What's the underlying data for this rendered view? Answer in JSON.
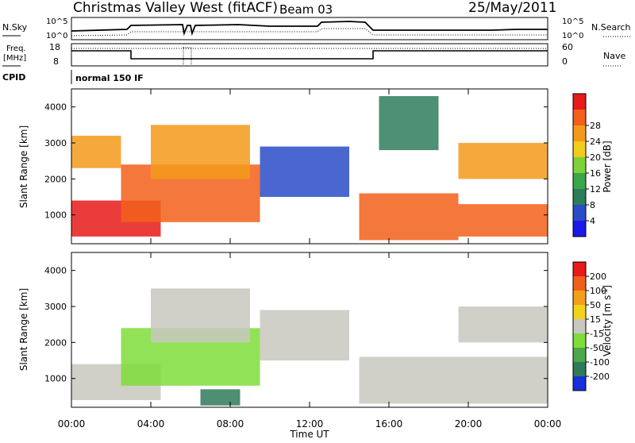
{
  "header": {
    "station": "Christmas Valley West (fitACF)",
    "beam": "Beam 03",
    "date": "25/May/2011"
  },
  "status_panels": {
    "nsky_label": "N.Sky",
    "nsearch_label": "N.Search",
    "freq_label_line1": "Freq.",
    "freq_label_line2": "[MHz]",
    "nave_label": "Nave",
    "cpid_label": "CPID",
    "cpid_value": "normal 150 IF",
    "noise_ticks": [
      "10^5",
      "10^0"
    ],
    "freq_ticks": [
      "18",
      "8"
    ],
    "nave_ticks": [
      "60",
      "0"
    ]
  },
  "axes": {
    "xlabel": "Time UT",
    "x_ticks": [
      "00:00",
      "04:00",
      "08:00",
      "12:00",
      "16:00",
      "20:00",
      "00:00"
    ],
    "ylabel": "Slant Range [km]",
    "y_ticks": [
      "1000",
      "2000",
      "3000",
      "4000"
    ]
  },
  "power_colorbar": {
    "label": "Power [dB]",
    "ticks": [
      "4",
      "8",
      "12",
      "16",
      "20",
      "24",
      "28"
    ],
    "colors": [
      "#1a1ae6",
      "#2a4cc8",
      "#2e7d5a",
      "#3aa64a",
      "#7fd13a",
      "#f2cc1a",
      "#f39a1a",
      "#f2601a",
      "#e81a1a"
    ]
  },
  "velocity_colorbar": {
    "label": "Velocity [m s",
    "label_sup": "-1",
    "label_close": "]",
    "ticks": [
      "200",
      "100",
      "50",
      "15",
      "-15",
      "-50",
      "-100",
      "-200"
    ],
    "colors": [
      "#1a2fd9",
      "#2f7a5a",
      "#4ca84c",
      "#7fdd3a",
      "#c8c8be",
      "#f2d21a",
      "#f2a01a",
      "#f0601a",
      "#e81a1a"
    ]
  },
  "chart_data": [
    {
      "type": "heatmap",
      "title": "",
      "xlabel": "Time UT",
      "ylabel": "Slant Range [km]",
      "xlim": [
        "00:00",
        "24:00"
      ],
      "ylim": [
        200,
        4500
      ],
      "colorbar": "Power [dB]",
      "colorbar_range": [
        0,
        30
      ],
      "bands": [
        {
          "t_start": 0.0,
          "t_end": 4.5,
          "r_start": 400,
          "r_end": 1400,
          "value": 28
        },
        {
          "t_start": 2.5,
          "t_end": 9.5,
          "r_start": 800,
          "r_end": 2400,
          "value": 24
        },
        {
          "t_start": 4.0,
          "t_end": 9.0,
          "r_start": 2000,
          "r_end": 3500,
          "value": 22
        },
        {
          "t_start": 0.0,
          "t_end": 2.5,
          "r_start": 2300,
          "r_end": 3200,
          "value": 22
        },
        {
          "t_start": 9.5,
          "t_end": 14.0,
          "r_start": 1500,
          "r_end": 2900,
          "value": 6
        },
        {
          "t_start": 14.5,
          "t_end": 19.5,
          "r_start": 300,
          "r_end": 1600,
          "value": 24
        },
        {
          "t_start": 19.5,
          "t_end": 24.0,
          "r_start": 400,
          "r_end": 1300,
          "value": 26
        },
        {
          "t_start": 19.5,
          "t_end": 24.0,
          "r_start": 2000,
          "r_end": 3000,
          "value": 20
        },
        {
          "t_start": 15.5,
          "t_end": 18.5,
          "r_start": 2800,
          "r_end": 4300,
          "value": 8
        }
      ]
    },
    {
      "type": "heatmap",
      "title": "",
      "xlabel": "Time UT",
      "ylabel": "Slant Range [km]",
      "xlim": [
        "00:00",
        "24:00"
      ],
      "ylim": [
        200,
        4500
      ],
      "colorbar": "Velocity [m s-1]",
      "colorbar_range": [
        -200,
        200
      ],
      "bands": [
        {
          "t_start": 0.0,
          "t_end": 4.5,
          "r_start": 400,
          "r_end": 1400,
          "value": 0
        },
        {
          "t_start": 2.5,
          "t_end": 9.5,
          "r_start": 800,
          "r_end": 2400,
          "value": -30
        },
        {
          "t_start": 4.0,
          "t_end": 9.0,
          "r_start": 2000,
          "r_end": 3500,
          "value": 0
        },
        {
          "t_start": 9.5,
          "t_end": 14.0,
          "r_start": 1500,
          "r_end": 2900,
          "value": 0
        },
        {
          "t_start": 14.5,
          "t_end": 24.0,
          "r_start": 300,
          "r_end": 1600,
          "value": 0
        },
        {
          "t_start": 19.5,
          "t_end": 24.0,
          "r_start": 2000,
          "r_end": 3000,
          "value": 0
        },
        {
          "t_start": 6.5,
          "t_end": 8.5,
          "r_start": 250,
          "r_end": 700,
          "value": -150
        }
      ]
    }
  ]
}
